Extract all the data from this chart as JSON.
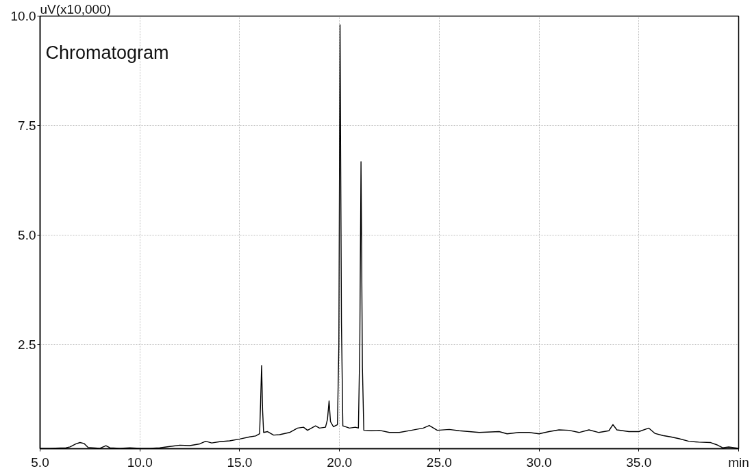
{
  "chart_data": {
    "type": "line",
    "title": "Chromatogram",
    "ylabel": "uV(x10,000)",
    "xlabel": "min",
    "xlim": [
      5,
      40
    ],
    "ylim": [
      0.13,
      10
    ],
    "xticks": [
      {
        "value": 5,
        "label": "5.0"
      },
      {
        "value": 10,
        "label": "10.0"
      },
      {
        "value": 15,
        "label": "15.0"
      },
      {
        "value": 20,
        "label": "20.0"
      },
      {
        "value": 25,
        "label": "25.0"
      },
      {
        "value": 30,
        "label": "30.0"
      },
      {
        "value": 35,
        "label": "35.0"
      }
    ],
    "yticks": [
      {
        "value": 2.5,
        "label": "2.5"
      },
      {
        "value": 5,
        "label": "5.0"
      },
      {
        "value": 7.5,
        "label": "7.5"
      },
      {
        "value": 10,
        "label": "10.0"
      }
    ],
    "grid": true,
    "marker": "none",
    "line_style": "solid",
    "series": [
      {
        "color": "#000000",
        "x": [
          5.0,
          5.5,
          6.3,
          6.5,
          6.8,
          7.0,
          7.2,
          7.4,
          8.0,
          8.3,
          8.5,
          9.0,
          9.5,
          10.0,
          10.5,
          11.0,
          11.5,
          12.0,
          12.5,
          13.0,
          13.3,
          13.6,
          14.0,
          14.5,
          15.0,
          15.5,
          15.8,
          16.0,
          16.05,
          16.1,
          16.15,
          16.2,
          16.4,
          16.7,
          17.0,
          17.5,
          17.9,
          18.2,
          18.4,
          18.6,
          18.8,
          19.0,
          19.3,
          19.4,
          19.48,
          19.55,
          19.7,
          19.9,
          19.97,
          20.03,
          20.1,
          20.17,
          20.5,
          20.8,
          20.95,
          21.02,
          21.08,
          21.15,
          21.22,
          21.6,
          22.0,
          22.5,
          23.0,
          23.6,
          24.2,
          24.5,
          24.9,
          25.5,
          26.0,
          27.0,
          28.0,
          28.4,
          29.0,
          29.5,
          30.0,
          30.5,
          31.0,
          31.5,
          32.0,
          32.5,
          33.0,
          33.5,
          33.7,
          33.9,
          34.5,
          35.0,
          35.5,
          35.8,
          36.2,
          36.6,
          37.0,
          37.5,
          38.0,
          38.6,
          38.9,
          39.2,
          39.5,
          40.0
        ],
        "values": [
          0.14,
          0.14,
          0.15,
          0.17,
          0.24,
          0.27,
          0.25,
          0.16,
          0.14,
          0.2,
          0.15,
          0.14,
          0.15,
          0.14,
          0.14,
          0.15,
          0.18,
          0.21,
          0.2,
          0.24,
          0.3,
          0.26,
          0.29,
          0.31,
          0.35,
          0.4,
          0.42,
          0.47,
          1.2,
          2.03,
          1.0,
          0.5,
          0.52,
          0.44,
          0.45,
          0.5,
          0.6,
          0.62,
          0.55,
          0.6,
          0.65,
          0.6,
          0.62,
          0.8,
          1.22,
          0.75,
          0.63,
          0.68,
          2.5,
          9.8,
          3.0,
          0.65,
          0.6,
          0.62,
          0.6,
          2.5,
          6.68,
          2.0,
          0.55,
          0.54,
          0.55,
          0.5,
          0.5,
          0.55,
          0.6,
          0.66,
          0.55,
          0.57,
          0.54,
          0.5,
          0.52,
          0.47,
          0.5,
          0.5,
          0.47,
          0.52,
          0.56,
          0.55,
          0.5,
          0.56,
          0.5,
          0.54,
          0.68,
          0.56,
          0.52,
          0.52,
          0.6,
          0.48,
          0.43,
          0.4,
          0.36,
          0.3,
          0.28,
          0.27,
          0.22,
          0.15,
          0.17,
          0.14
        ]
      }
    ]
  }
}
